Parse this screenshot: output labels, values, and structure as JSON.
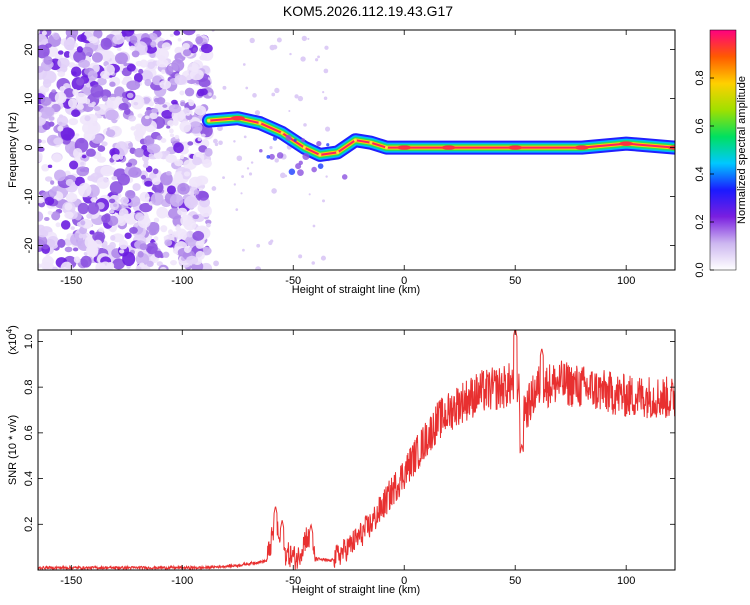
{
  "title": "KOM5.2026.112.19.43.G17",
  "chart_data": [
    {
      "type": "heatmap",
      "name": "spectrogram",
      "xlabel": "Height of straight line (km)",
      "ylabel": "Frequency (Hz)",
      "xlim": [
        -165,
        122
      ],
      "ylim": [
        -25,
        24
      ],
      "xticks": [
        -150,
        -100,
        -50,
        0,
        50,
        100
      ],
      "yticks": [
        -20,
        -10,
        0,
        10,
        20
      ],
      "colorbar": {
        "label": "Normalized spectral amplitude",
        "range": [
          0,
          1
        ],
        "ticks": [
          0.0,
          0.2,
          0.4,
          0.6,
          0.8
        ],
        "tick_labels": [
          "0.0",
          "0.2",
          "0.4",
          "0.6",
          "0.8"
        ],
        "colors": [
          "#ffffff",
          "#cdb7f0",
          "#7a1fe0",
          "#1a1aff",
          "#00c8ff",
          "#00e060",
          "#a0e000",
          "#ffd000",
          "#ff5a00",
          "#ff0080"
        ]
      },
      "noise_region": [
        -165,
        -88
      ],
      "ridge": [
        {
          "x": -88,
          "y": 5.5,
          "a": 0.6
        },
        {
          "x": -75,
          "y": 6.0,
          "a": 0.9
        },
        {
          "x": -65,
          "y": 5.0,
          "a": 0.5
        },
        {
          "x": -55,
          "y": 3.0,
          "a": 0.5
        },
        {
          "x": -45,
          "y": 0.0,
          "a": 0.6
        },
        {
          "x": -38,
          "y": -1.5,
          "a": 0.7
        },
        {
          "x": -30,
          "y": -1.0,
          "a": 0.6
        },
        {
          "x": -22,
          "y": 1.5,
          "a": 0.7
        },
        {
          "x": -15,
          "y": 1.0,
          "a": 0.6
        },
        {
          "x": -8,
          "y": 0.0,
          "a": 0.7
        },
        {
          "x": 0,
          "y": 0.0,
          "a": 0.8
        },
        {
          "x": 20,
          "y": 0.0,
          "a": 0.85
        },
        {
          "x": 50,
          "y": 0.0,
          "a": 0.8
        },
        {
          "x": 80,
          "y": 0.0,
          "a": 0.8
        },
        {
          "x": 100,
          "y": 0.8,
          "a": 0.75
        },
        {
          "x": 122,
          "y": 0.0,
          "a": 0.8
        }
      ]
    },
    {
      "type": "line",
      "name": "snr",
      "series": [
        {
          "name": "SNR",
          "color": "#e83030"
        }
      ],
      "xlabel": "Height of straight line (km)",
      "ylabel": "SNR (10 * v/v)",
      "y_multiplier": "(x10",
      "y_multiplier_exp": "4",
      "y_multiplier_close": ")",
      "xlim": [
        -165,
        122
      ],
      "ylim": [
        0,
        1.05
      ],
      "xticks": [
        -150,
        -100,
        -50,
        0,
        50,
        100
      ],
      "yticks": [
        0.2,
        0.4,
        0.6,
        0.8,
        1.0
      ],
      "ytick_labels": [
        "0.2",
        "0.4",
        "0.6",
        "0.8",
        "1.0"
      ],
      "envelope": [
        {
          "x": -165,
          "y": 0.01
        },
        {
          "x": -90,
          "y": 0.01
        },
        {
          "x": -75,
          "y": 0.02
        },
        {
          "x": -62,
          "y": 0.04
        },
        {
          "x": -58,
          "y": 0.2
        },
        {
          "x": -55,
          "y": 0.08
        },
        {
          "x": -48,
          "y": 0.05
        },
        {
          "x": -44,
          "y": 0.15
        },
        {
          "x": -40,
          "y": 0.05
        },
        {
          "x": -33,
          "y": 0.04
        },
        {
          "x": -25,
          "y": 0.1
        },
        {
          "x": -15,
          "y": 0.2
        },
        {
          "x": -5,
          "y": 0.35
        },
        {
          "x": 5,
          "y": 0.5
        },
        {
          "x": 15,
          "y": 0.65
        },
        {
          "x": 25,
          "y": 0.73
        },
        {
          "x": 35,
          "y": 0.78
        },
        {
          "x": 45,
          "y": 0.8
        },
        {
          "x": 50,
          "y": 0.82
        },
        {
          "x": 55,
          "y": 0.7
        },
        {
          "x": 60,
          "y": 0.8
        },
        {
          "x": 70,
          "y": 0.82
        },
        {
          "x": 80,
          "y": 0.8
        },
        {
          "x": 90,
          "y": 0.78
        },
        {
          "x": 100,
          "y": 0.76
        },
        {
          "x": 110,
          "y": 0.76
        },
        {
          "x": 122,
          "y": 0.75
        }
      ],
      "spikes": [
        {
          "x": -58,
          "y": 0.28
        },
        {
          "x": -55,
          "y": 0.22
        },
        {
          "x": -42,
          "y": 0.2
        },
        {
          "x": 50,
          "y": 1.06
        },
        {
          "x": 53,
          "y": 0.55
        },
        {
          "x": 62,
          "y": 0.97
        }
      ]
    }
  ]
}
